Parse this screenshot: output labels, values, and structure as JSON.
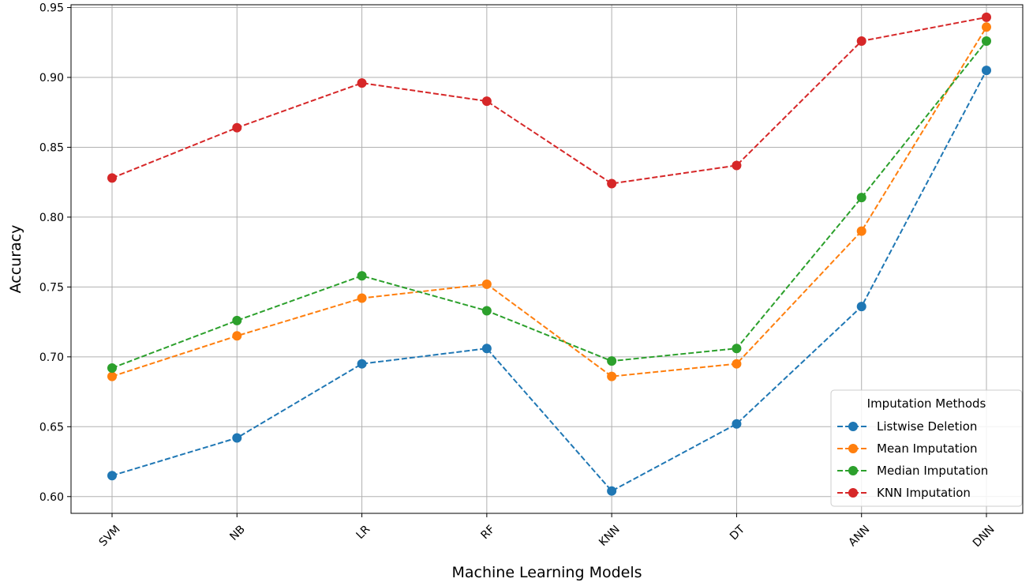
{
  "chart_data": {
    "type": "line",
    "title": "",
    "xlabel": "Machine Learning Models",
    "ylabel": "Accuracy",
    "categories": [
      "SVM",
      "NB",
      "LR",
      "RF",
      "KNN",
      "DT",
      "ANN",
      "DNN"
    ],
    "ylim": [
      0.588,
      0.952
    ],
    "yticks": [
      "0.60",
      "0.65",
      "0.70",
      "0.75",
      "0.80",
      "0.85",
      "0.90",
      "0.95"
    ],
    "grid": true,
    "legend": {
      "title": "Imputation Methods",
      "placement": "bottom-right"
    },
    "series": [
      {
        "name": "Listwise Deletion",
        "color": "#1f77b4",
        "values": [
          0.615,
          0.642,
          0.695,
          0.706,
          0.604,
          0.652,
          0.736,
          0.905
        ]
      },
      {
        "name": "Mean Imputation",
        "color": "#ff7f0e",
        "values": [
          0.686,
          0.715,
          0.742,
          0.752,
          0.686,
          0.695,
          0.79,
          0.936
        ]
      },
      {
        "name": "Median Imputation",
        "color": "#2ca02c",
        "values": [
          0.692,
          0.726,
          0.758,
          0.733,
          0.697,
          0.706,
          0.814,
          0.926
        ]
      },
      {
        "name": "KNN Imputation",
        "color": "#d62728",
        "values": [
          0.828,
          0.864,
          0.896,
          0.883,
          0.824,
          0.837,
          0.926,
          0.943
        ]
      }
    ]
  }
}
